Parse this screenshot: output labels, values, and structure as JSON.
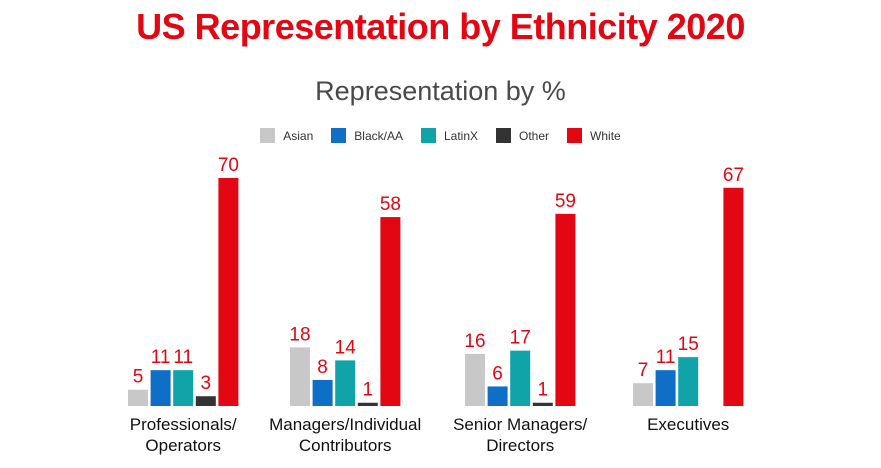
{
  "header": {
    "title": "US Representation by Ethnicity 2020",
    "subtitle": "Representation by %"
  },
  "chart_data": {
    "type": "bar",
    "title": "US Representation by Ethnicity 2020",
    "subtitle": "Representation by %",
    "xlabel": "",
    "ylabel": "",
    "ylim": [
      0,
      70
    ],
    "grid": false,
    "legend_position": "top-center",
    "categories": [
      [
        "Professionals/",
        "Operators"
      ],
      [
        "Managers/Individual",
        "Contributors"
      ],
      [
        "Senior Managers/",
        "Directors"
      ],
      [
        "Executives"
      ]
    ],
    "series": [
      {
        "name": "Asian",
        "color": "#c8c8c8",
        "values": [
          5,
          18,
          16,
          7
        ]
      },
      {
        "name": "Black/AA",
        "color": "#0f6fc6",
        "values": [
          11,
          8,
          6,
          11
        ]
      },
      {
        "name": "LatinX",
        "color": "#10a4a8",
        "values": [
          11,
          14,
          17,
          15
        ]
      },
      {
        "name": "Other",
        "color": "#333333",
        "values": [
          3,
          1,
          1,
          null
        ]
      },
      {
        "name": "White",
        "color": "#e30613",
        "values": [
          70,
          58,
          59,
          67
        ]
      }
    ],
    "label_color": "#e30613"
  }
}
